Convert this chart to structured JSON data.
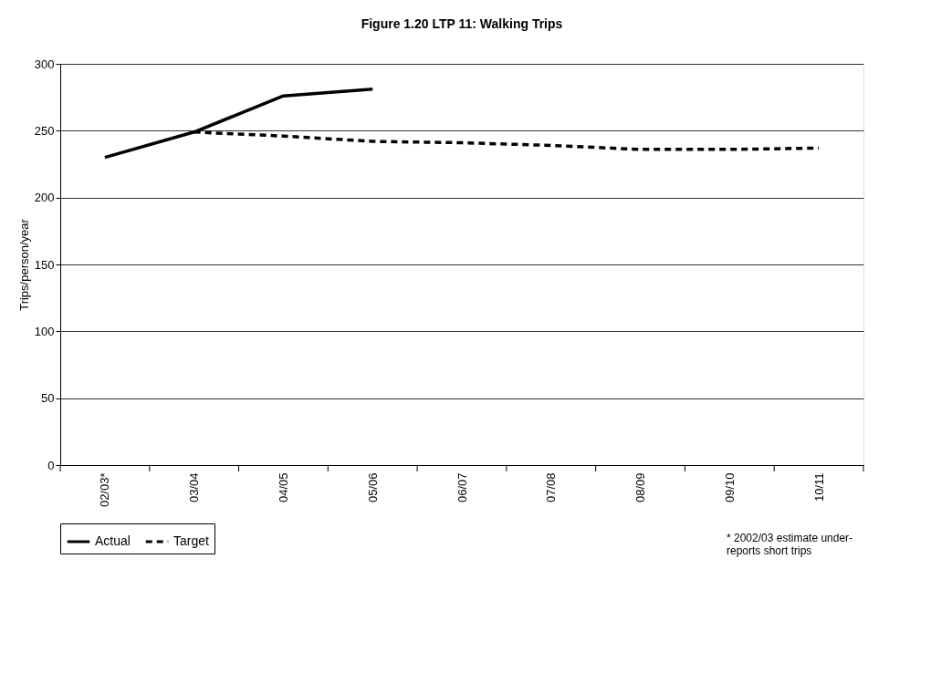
{
  "chart_data": {
    "type": "line",
    "title": "Figure 1.20 LTP 11: Walking Trips",
    "ylabel": "Trips/person/year",
    "categories": [
      "02/03*",
      "03/04",
      "04/05",
      "05/06",
      "06/07",
      "07/08",
      "08/09",
      "09/10",
      "10/11"
    ],
    "series": [
      {
        "name": "Actual",
        "color": "#000000",
        "line_style": "solid",
        "values": [
          230,
          249,
          276,
          281,
          null,
          null,
          null,
          null,
          null
        ]
      },
      {
        "name": "Target",
        "color": "#000000",
        "line_style": "dashed",
        "values": [
          null,
          249,
          246,
          242,
          241,
          239,
          236,
          236,
          237
        ]
      }
    ],
    "ylim": [
      0,
      300
    ],
    "yticks": [
      0,
      50,
      100,
      150,
      200,
      250,
      300
    ],
    "grid": "y",
    "legend": "bottom",
    "marker": "none",
    "annotations": [
      "* 2002/03  estimate under-reports short trips"
    ]
  }
}
